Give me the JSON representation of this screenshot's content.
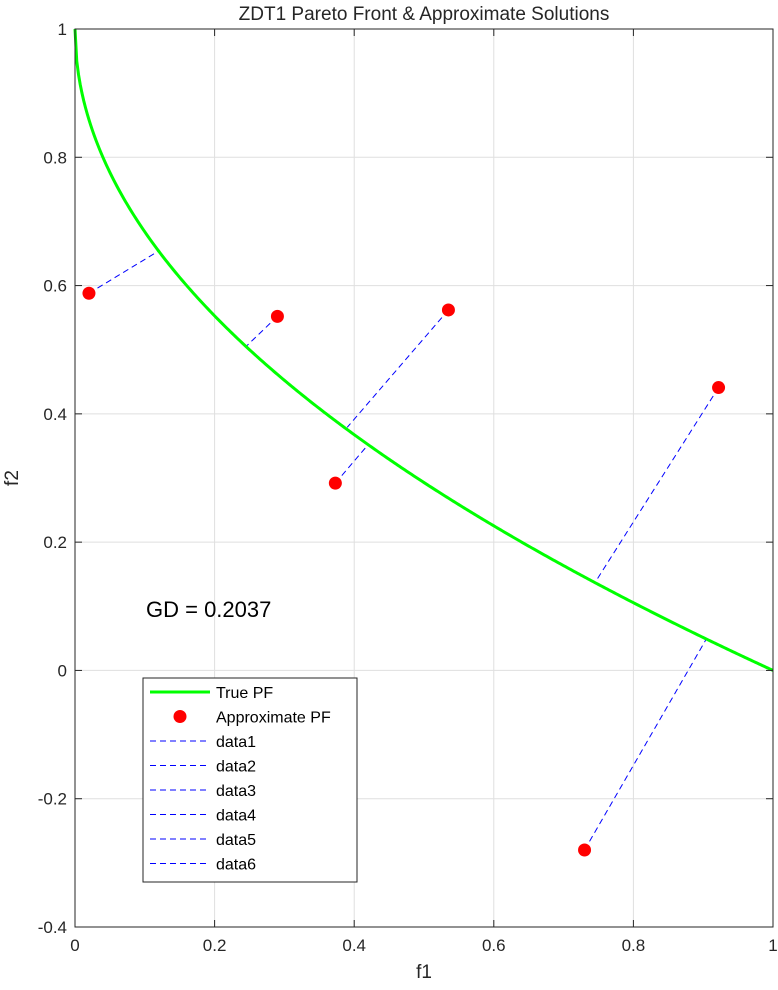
{
  "chart_data": {
    "type": "line",
    "title": "ZDT1 Pareto Front & Approximate Solutions",
    "xlabel": "f1",
    "ylabel": "f2",
    "xlim": [
      0,
      1
    ],
    "ylim": [
      -0.4,
      1
    ],
    "xticks": [
      0,
      0.2,
      0.4,
      0.6,
      0.8,
      1
    ],
    "xtick_labels": [
      "0",
      "0.2",
      "0.4",
      "0.6",
      "0.8",
      "1"
    ],
    "yticks": [
      -0.4,
      -0.2,
      0,
      0.2,
      0.4,
      0.6,
      0.8,
      1
    ],
    "ytick_labels": [
      "-0.4",
      "-0.2",
      "0",
      "0.2",
      "0.4",
      "0.6",
      "0.8",
      "1"
    ],
    "grid": true,
    "legend_position": "bottom-left",
    "annotation": "GD = 0.2037",
    "true_pf": {
      "name": "True PF",
      "color": "#00ff00",
      "equation": "f2 = 1 - sqrt(f1)",
      "f1_range": [
        0,
        1
      ]
    },
    "approximate_pf": {
      "name": "Approximate PF",
      "color": "#ff0000",
      "points": [
        {
          "f1": 0.02,
          "f2": 0.588
        },
        {
          "f1": 0.29,
          "f2": 0.552
        },
        {
          "f1": 0.535,
          "f2": 0.562
        },
        {
          "f1": 0.373,
          "f2": 0.292
        },
        {
          "f1": 0.922,
          "f2": 0.441
        },
        {
          "f1": 0.73,
          "f2": -0.28
        }
      ]
    },
    "distance_series": [
      {
        "name": "data1",
        "color": "#0000ff",
        "from": [
          0.02,
          0.588
        ],
        "to": [
          0.12,
          0.654
        ]
      },
      {
        "name": "data2",
        "color": "#0000ff",
        "from": [
          0.29,
          0.552
        ],
        "to": [
          0.245,
          0.505
        ]
      },
      {
        "name": "data3",
        "color": "#0000ff",
        "from": [
          0.535,
          0.562
        ],
        "to": [
          0.39,
          0.379
        ]
      },
      {
        "name": "data4",
        "color": "#0000ff",
        "from": [
          0.373,
          0.292
        ],
        "to": [
          0.42,
          0.352
        ]
      },
      {
        "name": "data5",
        "color": "#0000ff",
        "from": [
          0.922,
          0.441
        ],
        "to": [
          0.745,
          0.137
        ]
      },
      {
        "name": "data6",
        "color": "#0000ff",
        "from": [
          0.73,
          -0.28
        ],
        "to": [
          0.905,
          0.05
        ]
      }
    ]
  }
}
